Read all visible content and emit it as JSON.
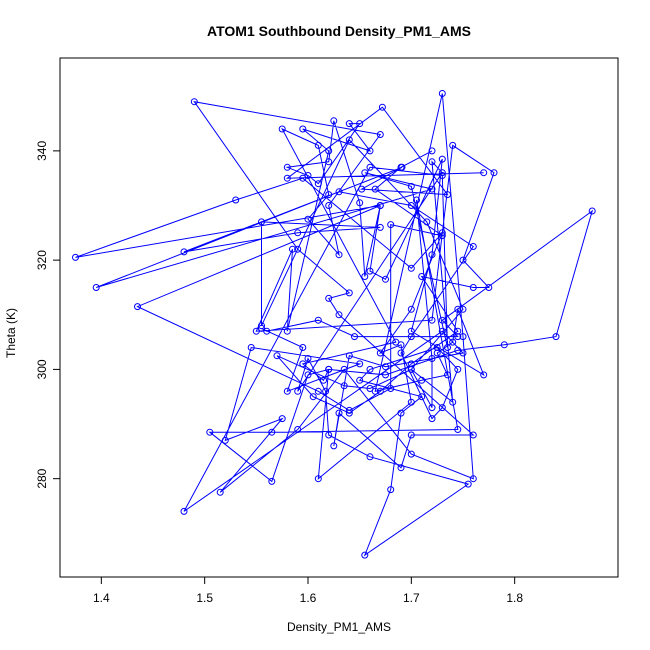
{
  "chart_data": {
    "type": "line",
    "title": "ATOM1 Southbound Density_PM1_AMS",
    "xlabel": "Density_PM1_AMS",
    "ylabel": "Theta (K)",
    "xlim": [
      1.36,
      1.9
    ],
    "ylim": [
      262,
      357
    ],
    "xticks": [
      1.4,
      1.5,
      1.6,
      1.7,
      1.8
    ],
    "yticks": [
      280,
      300,
      320,
      340
    ],
    "line_color": "#0000ff",
    "marker": "open-circle",
    "grid": false,
    "series": [
      {
        "points": [
          [
            1.77,
            336
          ],
          [
            1.58,
            335
          ],
          [
            1.672,
            348
          ],
          [
            1.735,
            332
          ],
          [
            1.652,
            333
          ],
          [
            1.691,
            337
          ],
          [
            1.48,
            321.5
          ],
          [
            1.59,
            325
          ],
          [
            1.67,
            326
          ],
          [
            1.555,
            327
          ],
          [
            1.555,
            308
          ],
          [
            1.64,
            342
          ],
          [
            1.715,
            327
          ],
          [
            1.75,
            311
          ],
          [
            1.7,
            300
          ],
          [
            1.74,
            294
          ],
          [
            1.72,
            338
          ],
          [
            1.73,
            336
          ],
          [
            1.59,
            296
          ],
          [
            1.6,
            302
          ],
          [
            1.617,
            296
          ],
          [
            1.62,
            288
          ],
          [
            1.66,
            284
          ],
          [
            1.755,
            279
          ],
          [
            1.655,
            266
          ],
          [
            1.68,
            278
          ],
          [
            1.69,
            292
          ],
          [
            1.71,
            295
          ],
          [
            1.65,
            298
          ],
          [
            1.66,
            300
          ],
          [
            1.725,
            304
          ],
          [
            1.745,
            300
          ],
          [
            1.73,
            293
          ],
          [
            1.72,
            291
          ],
          [
            1.69,
            303
          ],
          [
            1.7,
            306
          ],
          [
            1.76,
            322.5
          ],
          [
            1.7,
            330
          ],
          [
            1.63,
            332.5
          ],
          [
            1.395,
            315
          ],
          [
            1.72,
            333
          ],
          [
            1.655,
            336
          ],
          [
            1.7,
            333.5
          ],
          [
            1.735,
            304
          ],
          [
            1.73,
            335.5
          ],
          [
            1.66,
            337
          ],
          [
            1.48,
            274
          ],
          [
            1.73,
            307
          ],
          [
            1.75,
            303
          ],
          [
            1.675,
            300.5
          ],
          [
            1.64,
            302.5
          ],
          [
            1.625,
            286
          ],
          [
            1.63,
            292
          ],
          [
            1.69,
            282
          ],
          [
            1.7,
            288
          ],
          [
            1.76,
            288
          ],
          [
            1.63,
            310
          ],
          [
            1.62,
            313
          ],
          [
            1.64,
            314
          ],
          [
            1.59,
            322
          ],
          [
            1.49,
            349
          ],
          [
            1.67,
            343
          ],
          [
            1.62,
            330
          ],
          [
            1.63,
            321
          ],
          [
            1.6,
            327.5
          ],
          [
            1.62,
            332
          ],
          [
            1.61,
            341
          ],
          [
            1.575,
            344
          ],
          [
            1.685,
            305
          ],
          [
            1.595,
            301
          ],
          [
            1.615,
            298
          ],
          [
            1.62,
            300
          ],
          [
            1.675,
            299
          ],
          [
            1.745,
            303.5
          ],
          [
            1.79,
            304.5
          ],
          [
            1.84,
            306
          ],
          [
            1.875,
            329
          ],
          [
            1.73,
            309
          ],
          [
            1.745,
            306
          ],
          [
            1.645,
            306
          ],
          [
            1.61,
            309
          ],
          [
            1.56,
            307
          ],
          [
            1.555,
            307.5
          ],
          [
            1.595,
            304
          ],
          [
            1.58,
            296
          ],
          [
            1.65,
            301
          ],
          [
            1.545,
            304
          ],
          [
            1.52,
            287
          ],
          [
            1.575,
            291
          ],
          [
            1.515,
            277.5
          ],
          [
            1.59,
            289
          ],
          [
            1.635,
            300
          ],
          [
            1.7,
            284.5
          ],
          [
            1.76,
            280
          ],
          [
            1.75,
            306
          ],
          [
            1.73,
            350.5
          ],
          [
            1.665,
            296
          ],
          [
            1.71,
            298
          ],
          [
            1.735,
            299
          ],
          [
            1.725,
            303
          ],
          [
            1.74,
            305
          ],
          [
            1.745,
            311
          ],
          [
            1.77,
            299
          ],
          [
            1.7,
            307
          ],
          [
            1.72,
            321
          ],
          [
            1.73,
            338.5
          ],
          [
            1.675,
            316.5
          ],
          [
            1.66,
            318
          ],
          [
            1.67,
            330
          ],
          [
            1.655,
            317
          ],
          [
            1.65,
            330.5
          ],
          [
            1.625,
            345.5
          ],
          [
            1.62,
            338
          ],
          [
            1.58,
            337
          ],
          [
            1.6,
            335.5
          ],
          [
            1.61,
            334
          ],
          [
            1.65,
            345
          ],
          [
            1.64,
            345
          ],
          [
            1.66,
            340
          ],
          [
            1.595,
            344
          ],
          [
            1.62,
            340
          ],
          [
            1.58,
            307
          ],
          [
            1.585,
            322
          ],
          [
            1.55,
            307
          ],
          [
            1.72,
            309
          ],
          [
            1.74,
            341
          ],
          [
            1.78,
            336
          ],
          [
            1.75,
            320
          ],
          [
            1.775,
            315
          ],
          [
            1.76,
            315
          ],
          [
            1.71,
            317
          ],
          [
            1.745,
            307
          ],
          [
            1.7,
            301
          ],
          [
            1.67,
            296
          ],
          [
            1.64,
            292
          ],
          [
            1.605,
            295
          ],
          [
            1.57,
            302.5
          ],
          [
            1.635,
            297
          ],
          [
            1.66,
            296.5
          ],
          [
            1.7,
            300
          ],
          [
            1.72,
            293
          ],
          [
            1.72,
            302
          ],
          [
            1.705,
            331
          ],
          [
            1.745,
            289
          ],
          [
            1.565,
            288.5
          ],
          [
            1.505,
            288.5
          ],
          [
            1.565,
            279.5
          ],
          [
            1.6,
            299
          ],
          [
            1.62,
            300
          ],
          [
            1.61,
            280
          ],
          [
            1.7,
            294
          ],
          [
            1.69,
            304.5
          ],
          [
            1.67,
            303
          ],
          [
            1.7,
            311
          ],
          [
            1.73,
            325
          ],
          [
            1.7,
            318.5
          ],
          [
            1.595,
            335
          ],
          [
            1.53,
            331
          ],
          [
            1.375,
            320.5
          ],
          [
            1.67,
            330
          ],
          [
            1.435,
            311.5
          ],
          [
            1.61,
            296
          ],
          [
            1.64,
            292.5
          ],
          [
            1.68,
            296.5
          ],
          [
            1.68,
            326.5
          ],
          [
            1.73,
            324.5
          ],
          [
            1.665,
            333
          ],
          [
            1.69,
            337
          ],
          [
            1.72,
            340
          ]
        ]
      }
    ]
  }
}
